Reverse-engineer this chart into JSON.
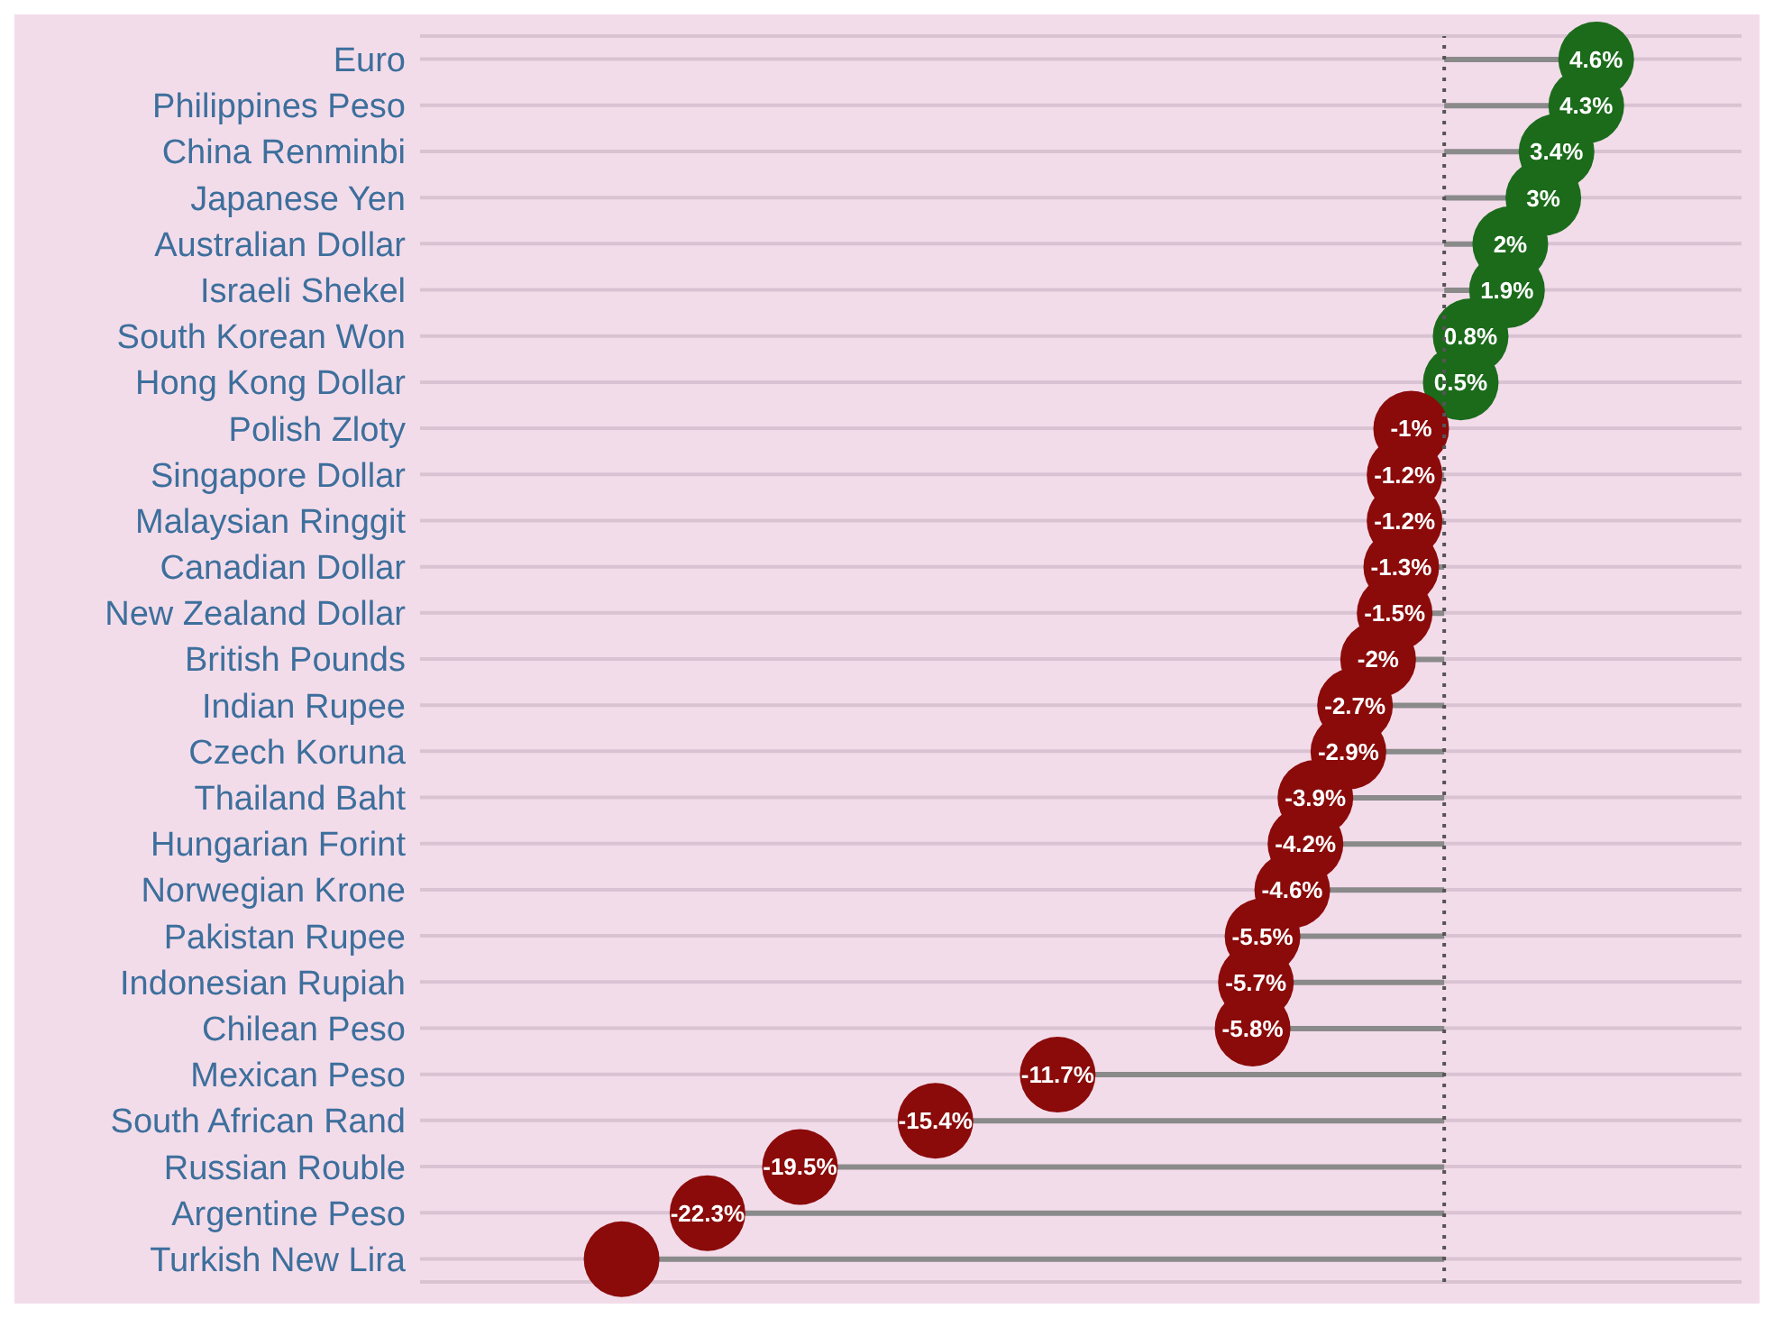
{
  "chart_data": {
    "type": "lollipop",
    "orientation": "horizontal",
    "categories": [
      "Euro",
      "Philippines Peso",
      "China Renminbi",
      "Japanese Yen",
      "Australian Dollar",
      "Israeli Shekel",
      "South Korean Won",
      "Hong Kong Dollar",
      "Polish Zloty",
      "Singapore Dollar",
      "Malaysian Ringgit",
      "Canadian Dollar",
      "New Zealand Dollar",
      "British Pounds",
      "Indian Rupee",
      "Czech Koruna",
      "Thailand Baht",
      "Hungarian Forint",
      "Norwegian Krone",
      "Pakistan Rupee",
      "Indonesian Rupiah",
      "Chilean Peso",
      "Mexican Peso",
      "South African Rand",
      "Russian Rouble",
      "Argentine Peso",
      "Turkish New Lira"
    ],
    "values": [
      4.6,
      4.3,
      3.4,
      3,
      2,
      1.9,
      0.8,
      0.5,
      -1,
      -1.2,
      -1.2,
      -1.3,
      -1.5,
      -2,
      -2.7,
      -2.9,
      -3.9,
      -4.2,
      -4.6,
      -5.5,
      -5.7,
      -5.8,
      -11.7,
      -15.4,
      -19.5,
      -22.3,
      -24.9
    ],
    "value_labels": [
      "4.6%",
      "4.3%",
      "3.4%",
      "3%",
      "2%",
      "1.9%",
      "0.8%",
      "0.5%",
      "-1%",
      "-1.2%",
      "-1.2%",
      "-1.3%",
      "-1.5%",
      "-2%",
      "-2.7%",
      "-2.9%",
      "-3.9%",
      "-4.2%",
      "-4.6%",
      "-5.5%",
      "-5.7%",
      "-5.8%",
      "-11.7%",
      "-15.4%",
      "-19.5%",
      "-22.3%",
      null
    ],
    "colors": [
      "#1b6b1b",
      "#1b6b1b",
      "#1b6b1b",
      "#1b6b1b",
      "#1b6b1b",
      "#1b6b1b",
      "#1b6b1b",
      "#1b6b1b",
      "#8b0a0a",
      "#8b0a0a",
      "#8b0a0a",
      "#8b0a0a",
      "#8b0a0a",
      "#8b0a0a",
      "#8b0a0a",
      "#8b0a0a",
      "#8b0a0a",
      "#8b0a0a",
      "#8b0a0a",
      "#8b0a0a",
      "#8b0a0a",
      "#8b0a0a",
      "#8b0a0a",
      "#8b0a0a",
      "#8b0a0a",
      "#8b0a0a",
      "#8b0a0a"
    ],
    "xlim": [
      -31,
      9
    ],
    "ref_lines": [
      {
        "axis": "x",
        "value": 0,
        "line_style": "dotted",
        "color": "#555555"
      }
    ],
    "grid": "y",
    "tick_labels": "y"
  }
}
